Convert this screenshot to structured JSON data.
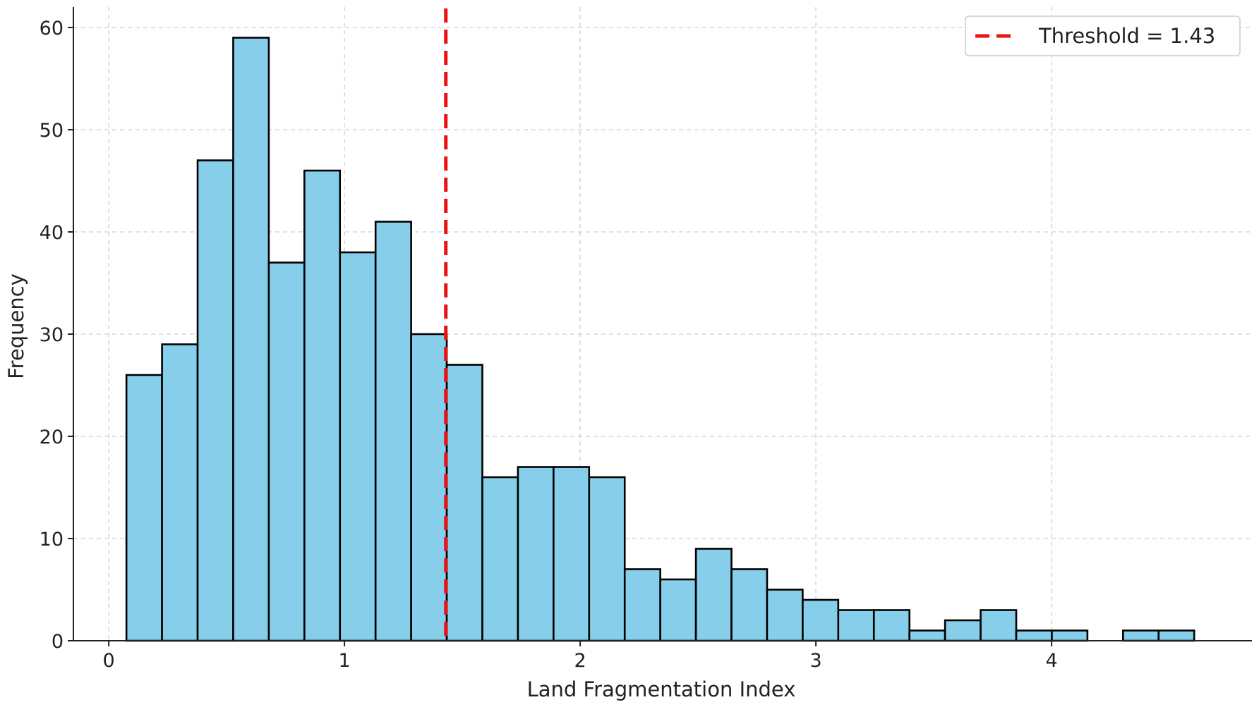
{
  "chart_data": {
    "type": "bar",
    "title": "",
    "xlabel": "Land Fragmentation Index",
    "ylabel": "Frequency",
    "xlim": [
      -0.15,
      4.85
    ],
    "ylim": [
      0,
      62
    ],
    "xticks": [
      0,
      1,
      2,
      3,
      4
    ],
    "xtick_labels": [
      "0",
      "1",
      "2",
      "3",
      "4"
    ],
    "yticks": [
      0,
      10,
      20,
      30,
      40,
      50,
      60
    ],
    "ytick_labels": [
      "0",
      "10",
      "20",
      "30",
      "40",
      "50",
      "60"
    ],
    "grid": true,
    "legend_placement": "top-right",
    "bin_start": 0.075,
    "bin_width": 0.151,
    "values": [
      26,
      29,
      47,
      59,
      37,
      46,
      38,
      41,
      30,
      27,
      16,
      17,
      17,
      16,
      7,
      6,
      9,
      7,
      5,
      4,
      3,
      3,
      1,
      2,
      3,
      1,
      1,
      0,
      1,
      1
    ],
    "threshold": {
      "value": 1.43,
      "label": "Threshold = 1.43",
      "color": "#ee1111"
    },
    "bar_color": "#87ceeb",
    "edge_color": "#000000"
  }
}
